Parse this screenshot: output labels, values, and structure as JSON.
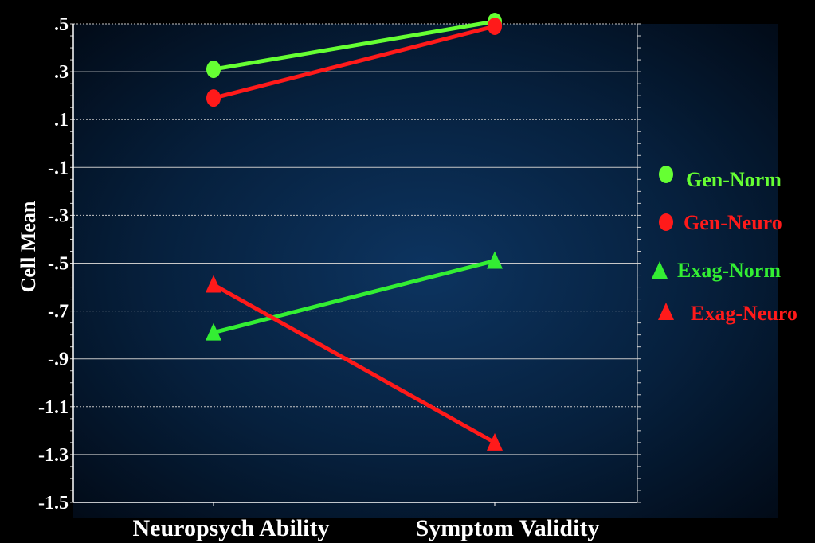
{
  "chart_data": {
    "type": "line",
    "title": "",
    "xlabel": "",
    "ylabel": "Cell Mean",
    "categories": [
      "Neuropsych Ability",
      "Symptom Validity"
    ],
    "ylim": [
      -1.5,
      0.5
    ],
    "yticks": [
      0.5,
      0.3,
      0.1,
      -0.1,
      -0.3,
      -0.5,
      -0.7,
      -0.9,
      -1.1,
      -1.3,
      -1.5
    ],
    "ytick_labels": [
      ".5",
      ".3",
      ".1",
      "-.1",
      "-.3",
      "-.5",
      "-.7",
      "-.9",
      "-1.1",
      "-1.3",
      "-1.5"
    ],
    "grid": true,
    "legend_position": "right",
    "series": [
      {
        "name": "Gen-Norm",
        "values": [
          0.31,
          0.51
        ],
        "color": "#66ff33",
        "marker": "circle"
      },
      {
        "name": "Gen-Neuro",
        "values": [
          0.19,
          0.49
        ],
        "color": "#ff1a1a",
        "marker": "circle"
      },
      {
        "name": "Exag-Norm",
        "values": [
          -0.79,
          -0.49
        ],
        "color": "#33ee33",
        "marker": "triangle"
      },
      {
        "name": "Exag-Neuro",
        "values": [
          -0.59,
          -1.25
        ],
        "color": "#ff1a1a",
        "marker": "triangle"
      }
    ]
  }
}
